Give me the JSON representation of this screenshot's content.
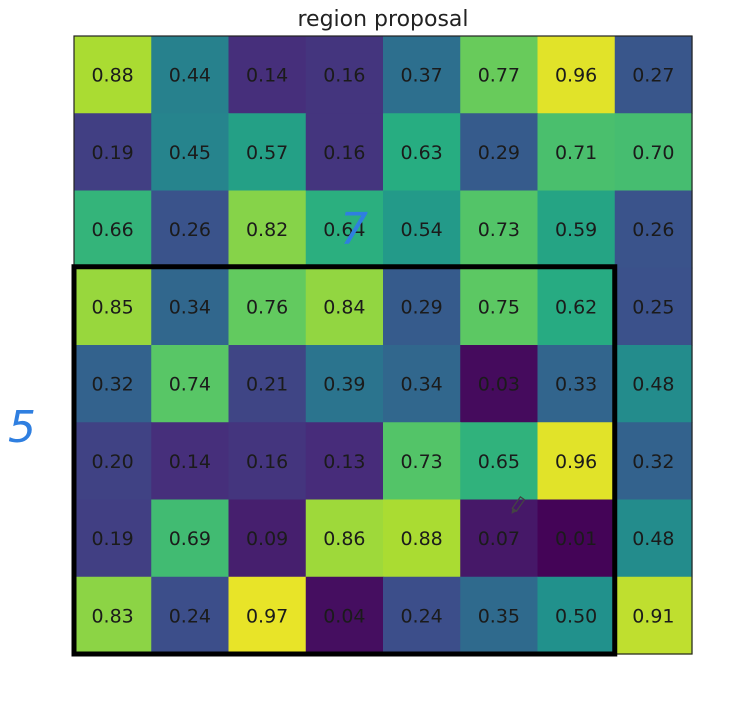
{
  "chart_data": {
    "type": "heatmap",
    "title": "region proposal",
    "rows": 8,
    "cols": 8,
    "values": [
      [
        0.88,
        0.44,
        0.14,
        0.16,
        0.37,
        0.77,
        0.96,
        0.27
      ],
      [
        0.19,
        0.45,
        0.57,
        0.16,
        0.63,
        0.29,
        0.71,
        0.7
      ],
      [
        0.66,
        0.26,
        0.82,
        0.64,
        0.54,
        0.73,
        0.59,
        0.26
      ],
      [
        0.85,
        0.34,
        0.76,
        0.84,
        0.29,
        0.75,
        0.62,
        0.25
      ],
      [
        0.32,
        0.74,
        0.21,
        0.39,
        0.34,
        0.03,
        0.33,
        0.48
      ],
      [
        0.2,
        0.14,
        0.16,
        0.13,
        0.73,
        0.65,
        0.96,
        0.32
      ],
      [
        0.19,
        0.69,
        0.09,
        0.86,
        0.88,
        0.07,
        0.01,
        0.48
      ],
      [
        0.83,
        0.24,
        0.97,
        0.04,
        0.24,
        0.35,
        0.5,
        0.91
      ]
    ],
    "colormap": "viridis",
    "highlight_region": {
      "row_start": 3,
      "row_end": 7,
      "col_start": 0,
      "col_end": 6,
      "border_color": "#000000"
    }
  },
  "annotations": {
    "width_label": "7",
    "height_label": "5",
    "ink_color": "#2f7fe0"
  }
}
